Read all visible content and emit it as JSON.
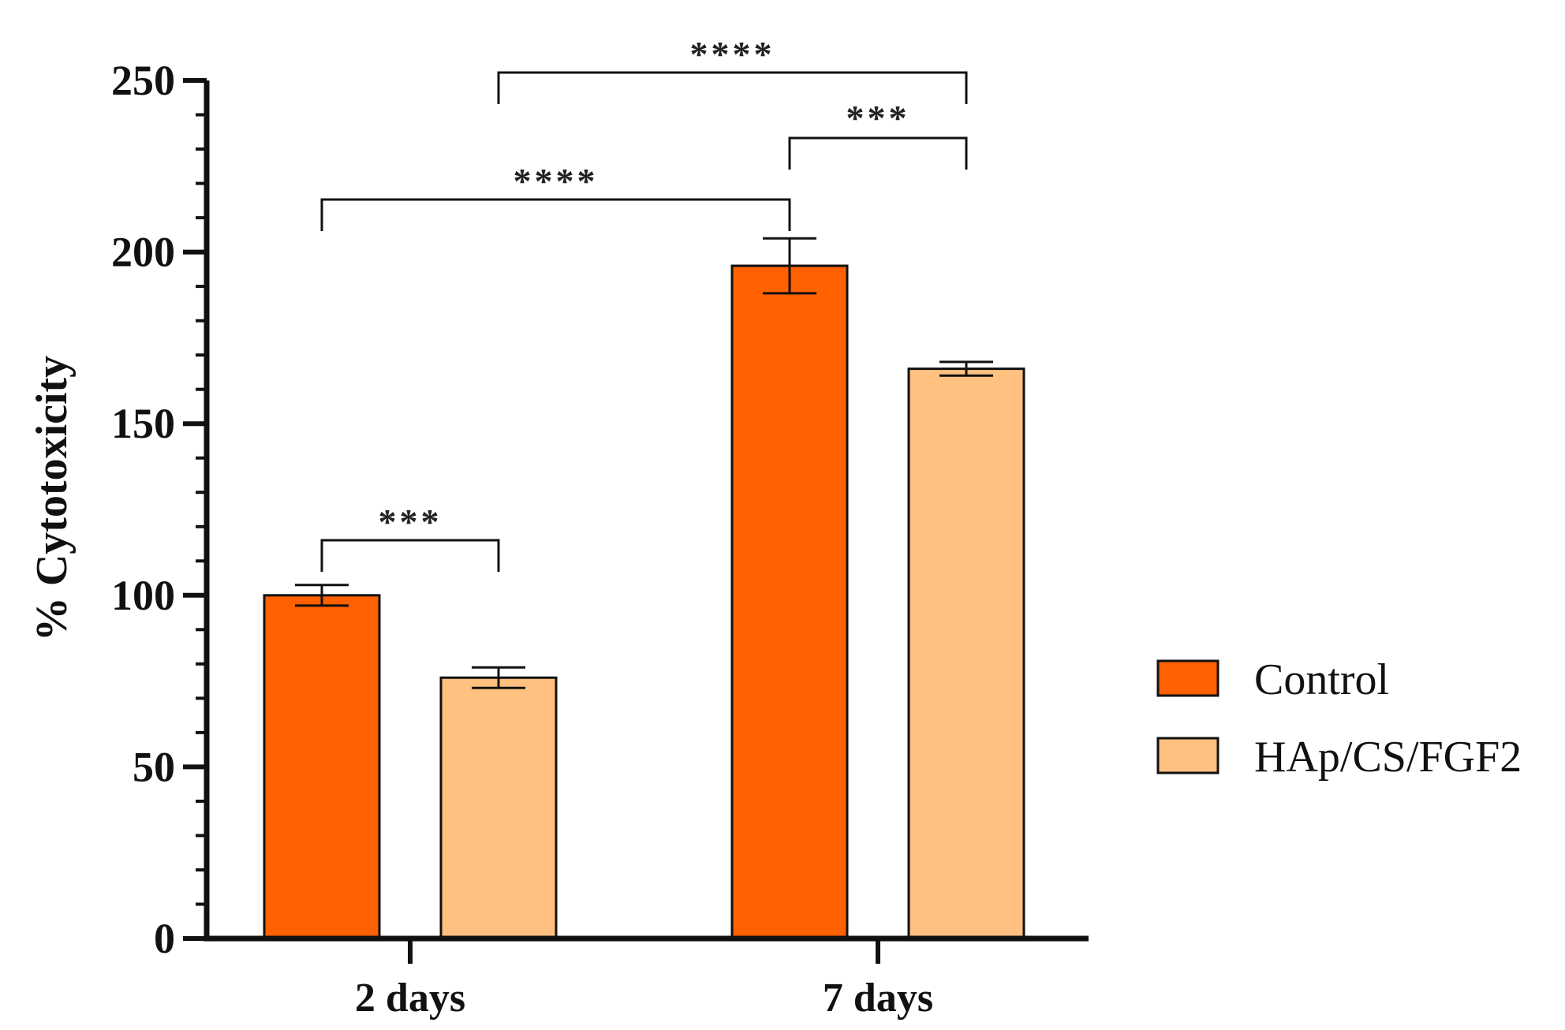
{
  "chart_data": {
    "type": "bar",
    "categories": [
      "2 days",
      "7 days"
    ],
    "series": [
      {
        "name": "Control",
        "values": [
          100,
          196
        ],
        "errors": [
          3,
          8
        ],
        "color": "#ff6000"
      },
      {
        "name": "HAp/CS/FGF2",
        "values": [
          76,
          166
        ],
        "errors": [
          3,
          2
        ],
        "color": "#ffc080"
      }
    ],
    "xlabel": "",
    "ylabel": "% Cytotoxicity",
    "ylim": [
      0,
      250
    ],
    "yticks": [
      0,
      50,
      100,
      150,
      200,
      250
    ],
    "legend": "right",
    "grid": false,
    "significance": [
      {
        "from": {
          "category": 0,
          "series": 0
        },
        "to": {
          "category": 0,
          "series": 1
        },
        "label": "***"
      },
      {
        "from": {
          "category": 0,
          "series": 0
        },
        "to": {
          "category": 1,
          "series": 0
        },
        "label": "****"
      },
      {
        "from": {
          "category": 1,
          "series": 0
        },
        "to": {
          "category": 1,
          "series": 1
        },
        "label": "***"
      },
      {
        "from": {
          "category": 0,
          "series": 1
        },
        "to": {
          "category": 1,
          "series": 1
        },
        "label": "****"
      }
    ]
  }
}
